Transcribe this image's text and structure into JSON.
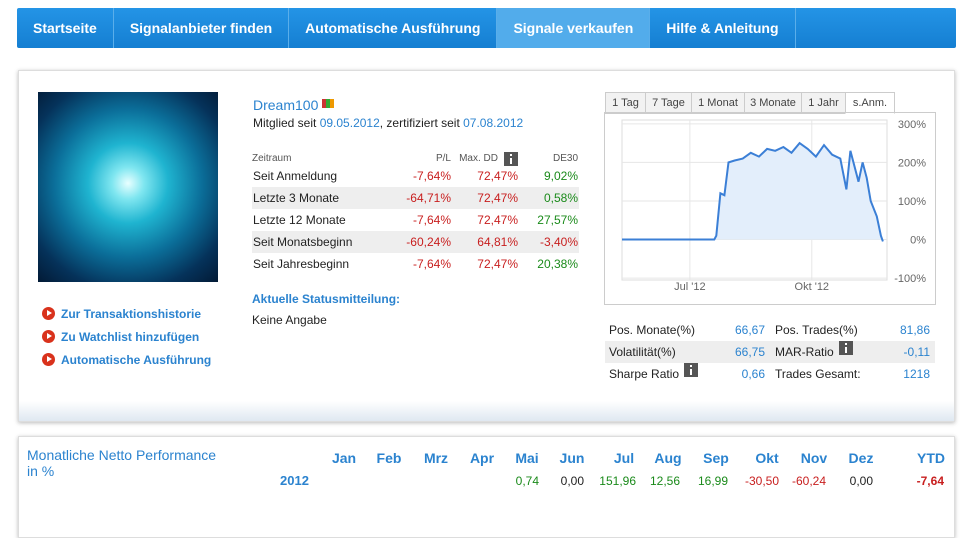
{
  "nav": {
    "items": [
      "Startseite",
      "Signalanbieter finden",
      "Automatische Ausführung",
      "Signale verkaufen",
      "Hilfe & Anleitung"
    ],
    "active": 3
  },
  "profile": {
    "name": "Dream100",
    "member_text": "Mitglied seit",
    "member_date": "09.05.2012",
    "cert_text": ", zertifiziert seit",
    "cert_date": "07.08.2012"
  },
  "stats_table": {
    "headers": [
      "Zeitraum",
      "P/L",
      "Max. DD",
      "DE30"
    ],
    "rows": [
      [
        "Seit Anmeldung",
        "-7,64%",
        "72,47%",
        "9,02%"
      ],
      [
        "Letzte 3 Monate",
        "-64,71%",
        "72,47%",
        "0,58%"
      ],
      [
        "Letzte 12 Monate",
        "-7,64%",
        "72,47%",
        "27,57%"
      ],
      [
        "Seit Monatsbeginn",
        "-60,24%",
        "64,81%",
        "-3,40%"
      ],
      [
        "Seit Jahresbeginn",
        "-7,64%",
        "72,47%",
        "20,38%"
      ]
    ]
  },
  "links": [
    "Zur Transaktionshistorie",
    "Zu Watchlist hinzufügen",
    "Automatische Ausführung"
  ],
  "status": {
    "title": "Aktuelle Statusmitteilung:",
    "text": "Keine Angabe"
  },
  "tabs": {
    "items": [
      "1 Tag",
      "7 Tage",
      "1 Monat",
      "3 Monate",
      "1 Jahr",
      "s.Anm."
    ],
    "active": 5
  },
  "chart": {
    "type": "line",
    "color": "#3b7fd6",
    "x": [
      5.33,
      7.6,
      7.65,
      7.75,
      7.85,
      7.95,
      8.1,
      8.3,
      8.5,
      8.7,
      8.9,
      9.1,
      9.3,
      9.5,
      9.7,
      9.9,
      10.1,
      10.3,
      10.5,
      10.7,
      10.85,
      10.95,
      11.1,
      11.15,
      11.25,
      11.35,
      11.45,
      11.6,
      11.7,
      11.75
    ],
    "values": [
      0,
      0,
      10,
      120,
      115,
      200,
      205,
      210,
      225,
      215,
      235,
      230,
      240,
      225,
      250,
      235,
      215,
      245,
      220,
      210,
      130,
      230,
      170,
      150,
      200,
      160,
      100,
      60,
      10,
      -5
    ],
    "xlim": [
      5.33,
      11.85
    ],
    "ylim": [
      -105,
      310
    ],
    "xticks": [
      {
        "value": 7,
        "label": "Jul '12"
      },
      {
        "value": 10,
        "label": "Okt '12"
      }
    ],
    "yticks": [
      {
        "value": 300,
        "label": "300%"
      },
      {
        "value": 200,
        "label": "200%"
      },
      {
        "value": 100,
        "label": "100%"
      },
      {
        "value": 0,
        "label": "0%"
      },
      {
        "value": -100,
        "label": "-100%"
      }
    ]
  },
  "metrics": {
    "rows": [
      [
        "Pos. Monate(%)",
        "66,67",
        "Pos. Trades(%)",
        "81,86"
      ],
      [
        "Volatilität(%)",
        "66,75",
        "MAR-Ratio",
        "-0,11"
      ],
      [
        "Sharpe Ratio",
        "0,66",
        "Trades Gesamt:",
        "1218"
      ]
    ]
  },
  "monthly": {
    "title": "Monatliche Netto Performance in %",
    "months": [
      "Jan",
      "Feb",
      "Mrz",
      "Apr",
      "Mai",
      "Jun",
      "Jul",
      "Aug",
      "Sep",
      "Okt",
      "Nov",
      "Dez",
      "YTD"
    ],
    "rows": [
      {
        "year": "2012",
        "values": [
          null,
          null,
          null,
          null,
          "0,74",
          "0,00",
          "151,96",
          "12,56",
          "16,99",
          "-30,50",
          "-60,24",
          "0,00",
          "-7,64"
        ]
      }
    ]
  }
}
